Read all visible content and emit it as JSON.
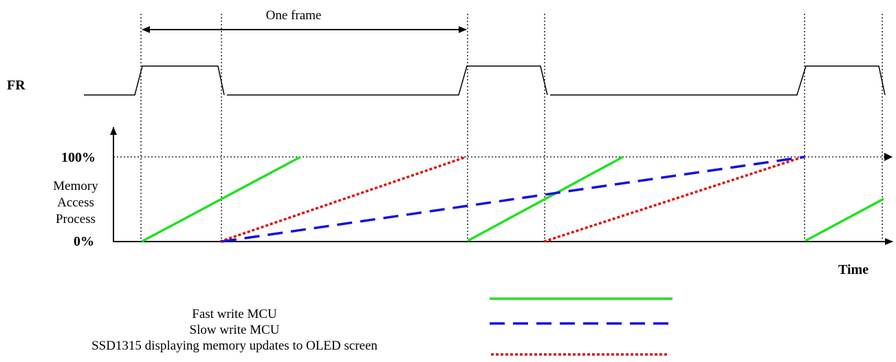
{
  "header": {
    "frame_label": "One frame"
  },
  "signals": {
    "fr_label": "FR"
  },
  "axes": {
    "y_top_label": "100%",
    "y_bottom_label": "0%",
    "y_title_lines": [
      "Memory",
      "Access",
      "Process"
    ],
    "x_title": "Time"
  },
  "legend": {
    "items": [
      {
        "label": "Fast write MCU",
        "color": "#22e022",
        "style": "solid"
      },
      {
        "label": "Slow write MCU",
        "color": "#1010e0",
        "style": "dashed"
      },
      {
        "label": "SSD1315 displaying memory updates to OLED screen",
        "color": "#e01010",
        "style": "dotted"
      }
    ]
  }
}
